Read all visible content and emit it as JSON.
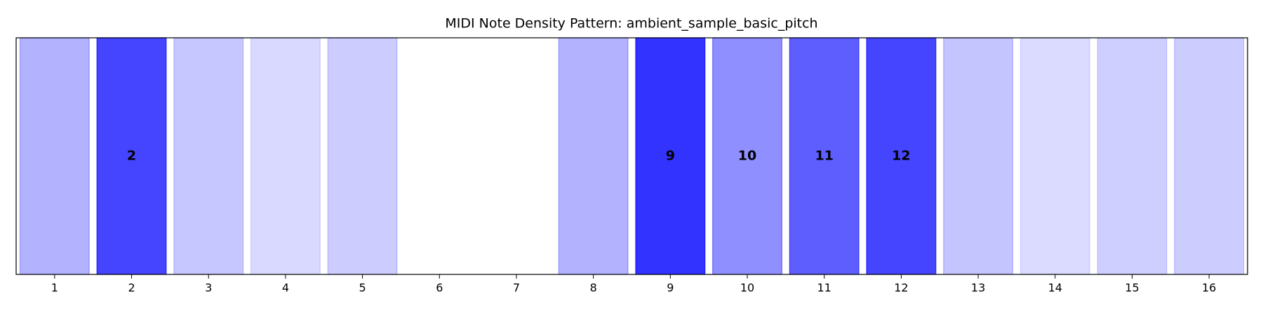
{
  "chart_data": {
    "type": "bar",
    "title": "MIDI Note Density Pattern: ambient_sample_basic_pitch",
    "categories": [
      "1",
      "2",
      "3",
      "4",
      "5",
      "6",
      "7",
      "8",
      "9",
      "10",
      "11",
      "12",
      "13",
      "14",
      "15",
      "16"
    ],
    "values": [
      0.3,
      0.73,
      0.22,
      0.15,
      0.2,
      0,
      0,
      0.3,
      0.8,
      0.44,
      0.63,
      0.73,
      0.23,
      0.14,
      0.19,
      0.2
    ],
    "bar_labels": [
      null,
      "2",
      null,
      null,
      null,
      null,
      null,
      null,
      "9",
      "10",
      "11",
      "12",
      null,
      null,
      null,
      null
    ],
    "color": "#0000ff"
  }
}
